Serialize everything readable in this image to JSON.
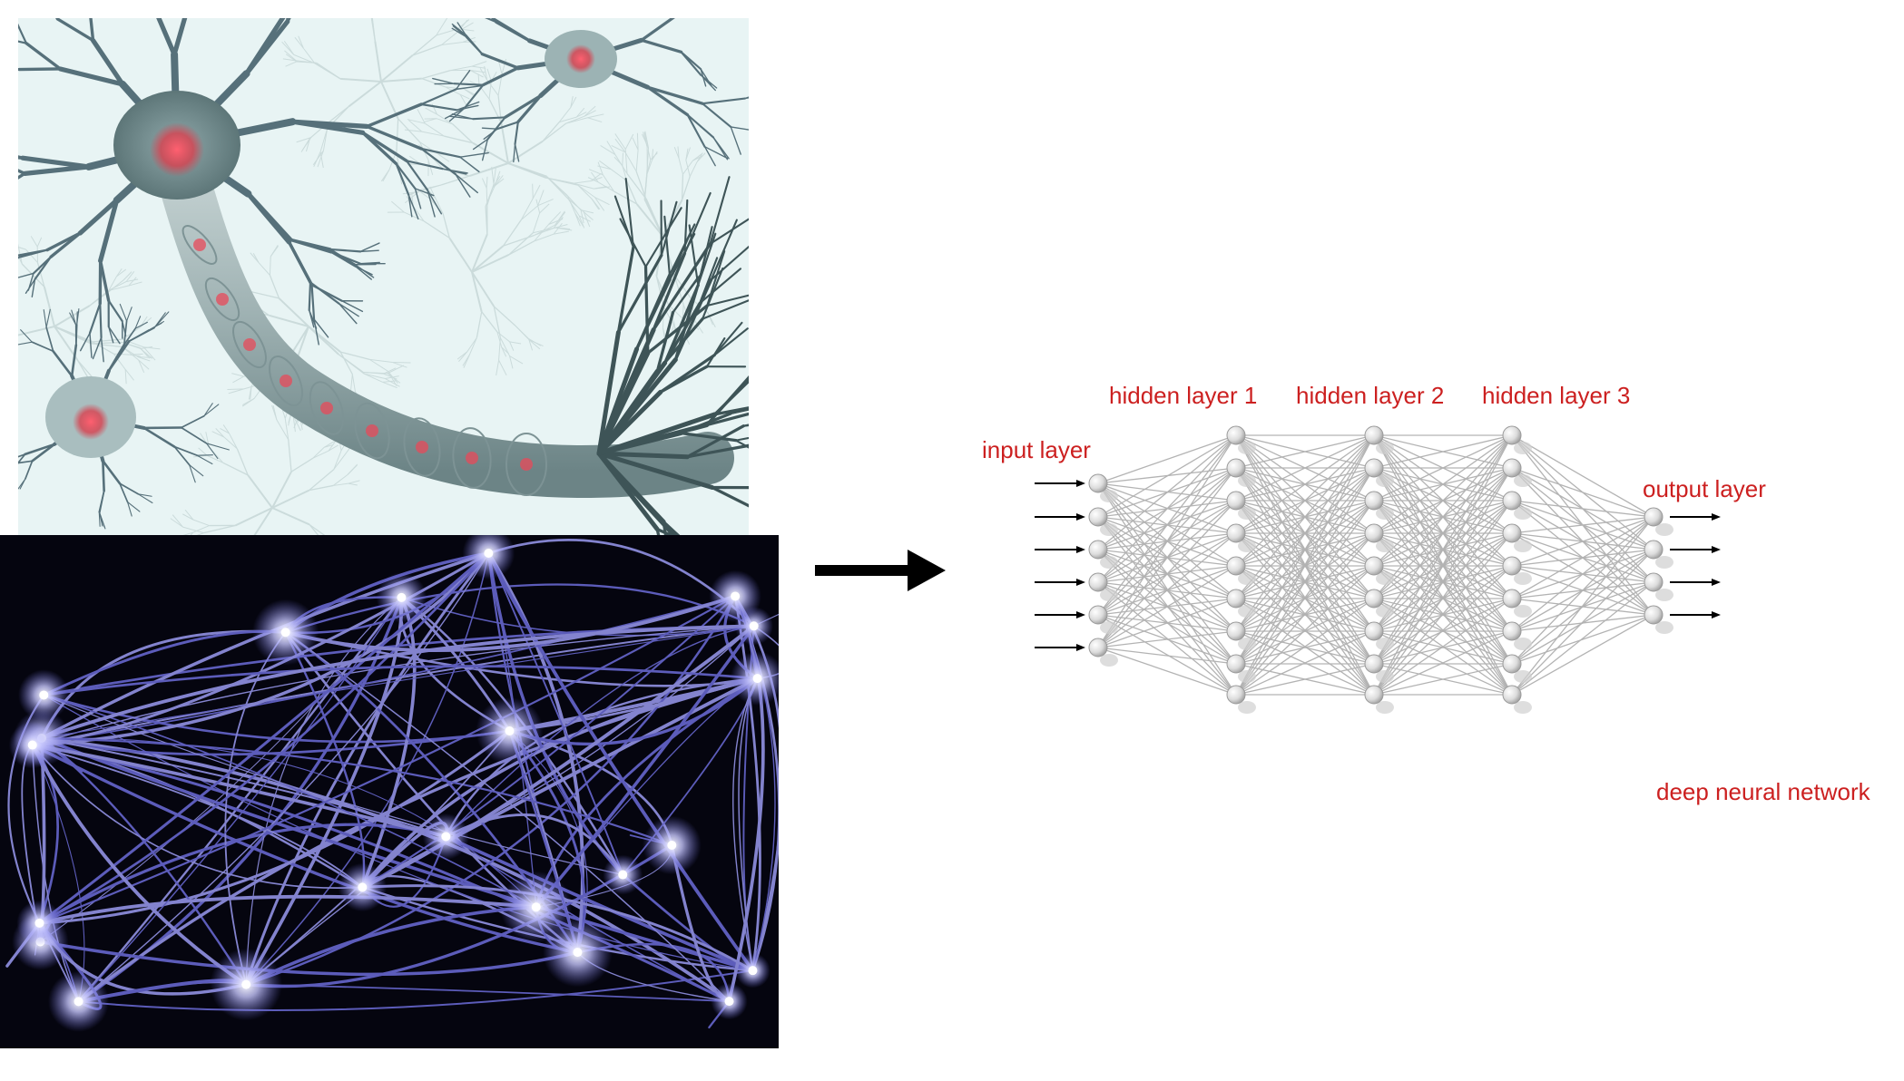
{
  "diagram": {
    "labels": {
      "input": "input layer",
      "hidden1": "hidden layer 1",
      "hidden2": "hidden layer 2",
      "hidden3": "hidden layer 3",
      "output": "output layer",
      "caption": "deep neural network"
    },
    "layer_sizes": [
      6,
      9,
      9,
      9,
      4
    ],
    "input_arrows": 6,
    "output_arrows": 4
  },
  "images": {
    "top": "neuron-illustration",
    "bottom": "neural-network-glow-illustration"
  },
  "colors": {
    "label": "#cc2020",
    "arrow": "#000000",
    "node": "#dcdcdc",
    "edge": "#9a9a9a",
    "neuron_bg": "#e8f4f4",
    "neuron_body": "#6f8a8c",
    "nucleus": "#e84a5a",
    "net_bg": "#05050f",
    "net_fiber": "#8a8ae8",
    "net_glow": "#ffffff"
  }
}
